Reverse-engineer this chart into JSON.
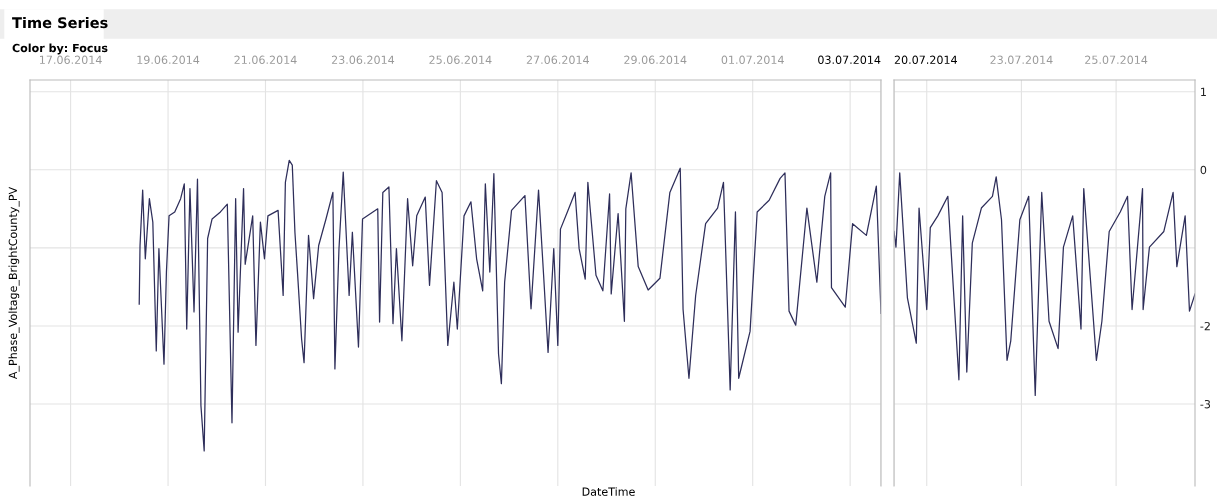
{
  "chart_data": [
    {
      "type": "line",
      "title": "Time Series",
      "subtitle": "Color by: Focus",
      "xlabel": "DateTime",
      "ylabel": "A_Phase_Voltage_BrightCounty_PV",
      "grid": true,
      "tick_labels": "x",
      "marker": "none",
      "line_style": "solid",
      "xlim": [
        "2014-06-16T04:00",
        "2014-07-03T15:12"
      ],
      "xticks": [
        {
          "value": "2014-06-17",
          "label": "17.06.2014"
        },
        {
          "value": "2014-06-19",
          "label": "19.06.2014"
        },
        {
          "value": "2014-06-21",
          "label": "21.06.2014"
        },
        {
          "value": "2014-06-23",
          "label": "23.06.2014"
        },
        {
          "value": "2014-06-25",
          "label": "25.06.2014"
        },
        {
          "value": "2014-06-27",
          "label": "27.06.2014"
        },
        {
          "value": "2014-06-29",
          "label": "29.06.2014"
        },
        {
          "value": "2014-07-01",
          "label": "01.07.2014"
        },
        {
          "value": "2014-07-03",
          "label": null
        },
        {
          "value": "2014-07-03T15:12",
          "label": "03.07.2014"
        }
      ],
      "ylim": [
        -4.05,
        1.15
      ],
      "yticks": [
        1,
        0,
        {
          "value": -1,
          "label": null
        },
        -2,
        -3
      ],
      "series": [
        {
          "color": "#2e2e5a",
          "x": [
            "2014-06-18T09:48",
            "2014-06-18T10:12",
            "2014-06-18T11:30",
            "2014-06-18T12:48",
            "2014-06-18T14:48",
            "2014-06-18T16:30",
            "2014-06-18T18:12",
            "2014-06-18T19:30",
            "2014-06-18T22:00",
            "2014-06-18T23:12",
            "2014-06-19T00:30",
            "2014-06-19T03:18",
            "2014-06-19T06:12",
            "2014-06-19T08:00",
            "2014-06-19T09:12",
            "2014-06-19T10:48",
            "2014-06-19T12:48",
            "2014-06-19T14:30",
            "2014-06-19T16:12",
            "2014-06-19T17:48",
            "2014-06-19T19:30",
            "2014-06-19T21:42",
            "2014-06-20T01:48",
            "2014-06-20T05:12",
            "2014-06-20T07:30",
            "2014-06-20T09:18",
            "2014-06-20T10:30",
            "2014-06-20T13:12",
            "2014-06-20T14:00",
            "2014-06-20T17:42",
            "2014-06-20T19:18",
            "2014-06-20T21:30",
            "2014-06-20T23:30",
            "2014-06-21T01:12",
            "2014-06-21T06:12",
            "2014-06-21T08:42",
            "2014-06-21T09:48",
            "2014-06-21T11:42",
            "2014-06-21T13:12",
            "2014-06-21T14:30",
            "2014-06-21T15:48",
            "2014-06-21T17:48",
            "2014-06-21T19:00",
            "2014-06-21T21:12",
            "2014-06-21T23:42",
            "2014-06-22T02:12",
            "2014-06-22T05:48",
            "2014-06-22T09:12",
            "2014-06-22T10:12",
            "2014-06-22T12:12",
            "2014-06-22T14:18",
            "2014-06-22T17:12",
            "2014-06-22T18:48",
            "2014-06-22T21:48",
            "2014-06-22T23:48",
            "2014-06-23T07:18",
            "2014-06-23T08:12",
            "2014-06-23T09:48",
            "2014-06-23T12:48",
            "2014-06-23T14:48",
            "2014-06-23T16:30",
            "2014-06-23T19:12",
            "2014-06-23T22:00",
            "2014-06-24T00:30",
            "2014-06-24T02:30",
            "2014-06-24T06:42",
            "2014-06-24T08:48",
            "2014-06-24T12:12",
            "2014-06-24T15:00",
            "2014-06-24T17:48",
            "2014-06-24T20:48",
            "2014-06-24T22:30",
            "2014-06-25T01:48",
            "2014-06-25T05:12",
            "2014-06-25T08:00",
            "2014-06-25T11:00",
            "2014-06-25T12:18",
            "2014-06-25T14:30",
            "2014-06-25T16:30",
            "2014-06-25T18:48",
            "2014-06-25T20:12",
            "2014-06-25T21:48",
            "2014-06-26T01:12",
            "2014-06-26T07:48",
            "2014-06-26T10:48",
            "2014-06-26T14:30",
            "2014-06-26T17:00",
            "2014-06-26T19:12",
            "2014-06-26T22:00",
            "2014-06-27T00:00",
            "2014-06-27T01:18",
            "2014-06-27T04:42",
            "2014-06-27T08:30",
            "2014-06-27T10:30",
            "2014-06-27T13:30",
            "2014-06-27T14:48",
            "2014-06-27T18:48",
            "2014-06-27T22:12",
            "2014-06-28T01:30",
            "2014-06-28T02:18",
            "2014-06-28T05:42",
            "2014-06-28T08:48",
            "2014-06-28T09:30",
            "2014-06-28T12:06",
            "2014-06-28T15:36",
            "2014-06-28T20:30",
            "2014-06-29T02:18",
            "2014-06-29T07:12",
            "2014-06-29T12:18",
            "2014-06-29T13:42",
            "2014-06-29T16:36",
            "2014-06-29T19:54",
            "2014-06-30T00:48",
            "2014-06-30T06:42",
            "2014-06-30T09:36",
            "2014-06-30T12:54",
            "2014-06-30T15:30",
            "2014-06-30T17:06",
            "2014-06-30T22:42",
            "2014-07-01T02:12",
            "2014-07-01T08:06",
            "2014-07-01T13:30",
            "2014-07-01T15:54",
            "2014-07-01T17:54",
            "2014-07-01T21:12",
            "2014-07-02T02:42",
            "2014-07-02T07:36",
            "2014-07-02T11:30",
            "2014-07-02T14:24",
            "2014-07-02T14:48",
            "2014-07-02T21:36",
            "2014-07-03T01:12",
            "2014-07-03T08:00",
            "2014-07-03T12:54",
            "2014-07-03T15:12"
          ],
          "values": [
            -1.72,
            -0.97,
            -0.26,
            -1.14,
            -0.37,
            -0.67,
            -2.32,
            -1.01,
            -2.49,
            -1.31,
            -0.59,
            -0.54,
            -0.37,
            -0.18,
            -2.04,
            -0.24,
            -1.82,
            -0.12,
            -3.02,
            -3.6,
            -0.88,
            -0.63,
            -0.54,
            -0.44,
            -3.24,
            -0.37,
            -2.08,
            -0.24,
            -1.21,
            -0.59,
            -2.25,
            -0.67,
            -1.14,
            -0.59,
            -0.52,
            -1.61,
            -0.16,
            0.12,
            0.06,
            -0.8,
            -1.33,
            -2.17,
            -2.47,
            -0.84,
            -1.65,
            -0.97,
            -0.63,
            -0.29,
            -2.55,
            -1.01,
            -0.03,
            -1.61,
            -0.8,
            -2.27,
            -0.63,
            -0.5,
            -1.95,
            -0.29,
            -0.22,
            -1.97,
            -1.01,
            -2.19,
            -0.37,
            -1.23,
            -0.59,
            -0.35,
            -1.48,
            -0.14,
            -0.29,
            -2.25,
            -1.44,
            -2.04,
            -0.59,
            -0.41,
            -1.14,
            -1.55,
            -0.18,
            -1.31,
            -0.05,
            -2.36,
            -2.74,
            -1.44,
            -0.52,
            -0.33,
            -1.78,
            -0.26,
            -1.35,
            -2.34,
            -1.01,
            -2.25,
            -0.76,
            -0.54,
            -0.29,
            -1.01,
            -1.4,
            -0.16,
            -1.35,
            -1.55,
            -0.31,
            -1.59,
            -0.56,
            -1.94,
            -0.5,
            -0.04,
            -1.24,
            -1.54,
            -1.39,
            -0.29,
            0.02,
            -1.79,
            -2.67,
            -1.61,
            -0.69,
            -0.49,
            -0.16,
            -2.82,
            -0.54,
            -2.67,
            -2.07,
            -0.54,
            -0.39,
            -0.11,
            -0.04,
            -1.81,
            -1.99,
            -0.49,
            -1.44,
            -0.34,
            -0.04,
            -1.51,
            -1.76,
            -0.69,
            -0.84,
            -0.21,
            -1.84
          ]
        }
      ]
    },
    {
      "type": "line",
      "grid": true,
      "marker": "none",
      "line_style": "solid",
      "xlim": [
        "2014-07-20T07:24",
        "2014-07-26T16:00"
      ],
      "xticks": [
        {
          "value": "2014-07-20T07:24",
          "label": "20.07.2014"
        },
        {
          "value": "2014-07-21",
          "label": null
        },
        {
          "value": "2014-07-23",
          "label": "23.07.2014"
        },
        {
          "value": "2014-07-25",
          "label": "25.07.2014"
        }
      ],
      "ylim": [
        -4.05,
        1.15
      ],
      "yticks": [
        1,
        0,
        {
          "value": -1,
          "label": null
        },
        -2,
        -3
      ],
      "series": [
        {
          "color": "#2e2e5a",
          "x": [
            "2014-07-20T07:24",
            "2014-07-20T08:24",
            "2014-07-20T10:18",
            "2014-07-20T14:12",
            "2014-07-20T18:42",
            "2014-07-20T20:06",
            "2014-07-21T00:00",
            "2014-07-21T01:48",
            "2014-07-21T05:36",
            "2014-07-21T10:42",
            "2014-07-21T13:54",
            "2014-07-21T16:18",
            "2014-07-21T18:12",
            "2014-07-21T20:18",
            "2014-07-21T23:06",
            "2014-07-22T03:42",
            "2014-07-22T09:18",
            "2014-07-22T11:12",
            "2014-07-22T13:54",
            "2014-07-22T16:42",
            "2014-07-22T18:36",
            "2014-07-22T23:12",
            "2014-07-23T03:42",
            "2014-07-23T07:00",
            "2014-07-23T10:18",
            "2014-07-23T14:00",
            "2014-07-23T18:36",
            "2014-07-23T21:18",
            "2014-07-24T02:00",
            "2014-07-24T06:12",
            "2014-07-24T07:36",
            "2014-07-24T14:00",
            "2014-07-24T16:48",
            "2014-07-24T20:30",
            "2014-07-25T02:06",
            "2014-07-25T05:48",
            "2014-07-25T08:06",
            "2014-07-25T13:24",
            "2014-07-25T13:42",
            "2014-07-25T16:54",
            "2014-07-26T00:12",
            "2014-07-26T04:54",
            "2014-07-26T06:48",
            "2014-07-26T11:00",
            "2014-07-26T13:12",
            "2014-07-26T16:00"
          ],
          "values": [
            -0.79,
            -0.99,
            -0.04,
            -1.64,
            -2.22,
            -0.49,
            -1.79,
            -0.74,
            -0.59,
            -0.34,
            -1.69,
            -2.69,
            -0.59,
            -2.59,
            -0.94,
            -0.49,
            -0.34,
            -0.09,
            -0.64,
            -2.44,
            -2.19,
            -0.64,
            -0.34,
            -2.89,
            -0.29,
            -1.94,
            -2.29,
            -0.99,
            -0.59,
            -2.04,
            -0.24,
            -2.44,
            -1.94,
            -0.79,
            -0.54,
            -0.34,
            -1.79,
            -0.24,
            -1.79,
            -0.99,
            -0.79,
            -0.29,
            -1.24,
            -0.59,
            -1.81,
            -1.59
          ]
        }
      ]
    }
  ]
}
